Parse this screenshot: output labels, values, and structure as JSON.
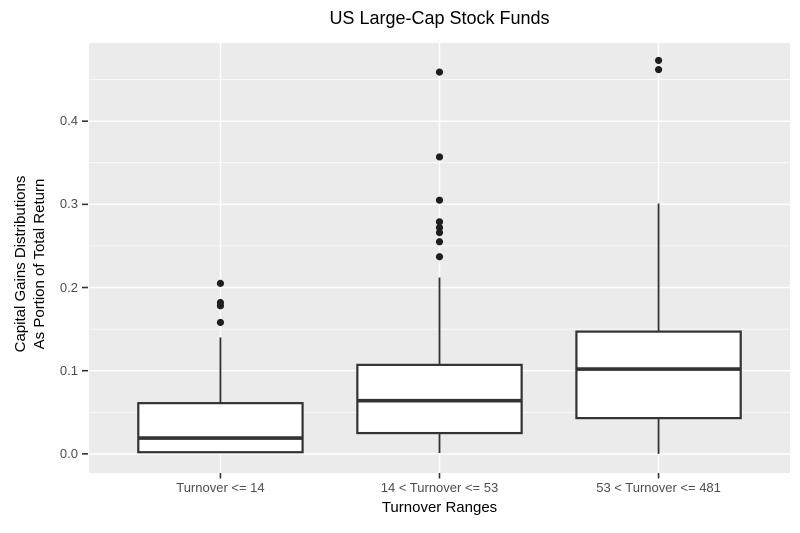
{
  "chart_data": {
    "type": "boxplot",
    "title": "US Large-Cap Stock Funds",
    "xlabel": "Turnover Ranges",
    "ylabel_lines": [
      "Capital Gains Distributions",
      "As Portion of Total Return"
    ],
    "categories": [
      "Turnover <= 14",
      "14 < Turnover <= 53",
      "53 < Turnover <= 481"
    ],
    "ytick_values": [
      0.0,
      0.1,
      0.2,
      0.3,
      0.4
    ],
    "ytick_labels": [
      "0.0",
      "0.1",
      "0.2",
      "0.3",
      "0.4"
    ],
    "yminor_values": [
      0.05,
      0.15,
      0.25,
      0.35,
      0.45
    ],
    "ylim": [
      -0.023,
      0.494
    ],
    "grid": true,
    "legend_position": "none",
    "colors": {
      "panel_background": "#EBEBEB",
      "gridline": "#FFFFFF",
      "box_stroke": "#333333",
      "box_fill": "#FFFFFF",
      "outlier": "#1E1E1E",
      "tick_mark": "#333333"
    },
    "series": [
      {
        "name": "Turnover <= 14",
        "whisker_low": 0.002,
        "q1": 0.002,
        "median": 0.019,
        "q3": 0.061,
        "whisker_high": 0.14,
        "outliers": [
          0.158,
          0.178,
          0.182,
          0.205
        ]
      },
      {
        "name": "14 < Turnover <= 53",
        "whisker_low": 0.001,
        "q1": 0.025,
        "median": 0.064,
        "q3": 0.107,
        "whisker_high": 0.212,
        "outliers": [
          0.237,
          0.255,
          0.266,
          0.272,
          0.279,
          0.305,
          0.357,
          0.459
        ]
      },
      {
        "name": "53 < Turnover <= 481",
        "whisker_low": 0.0,
        "q1": 0.043,
        "median": 0.102,
        "q3": 0.147,
        "whisker_high": 0.301,
        "outliers": [
          0.462,
          0.473
        ]
      }
    ]
  }
}
